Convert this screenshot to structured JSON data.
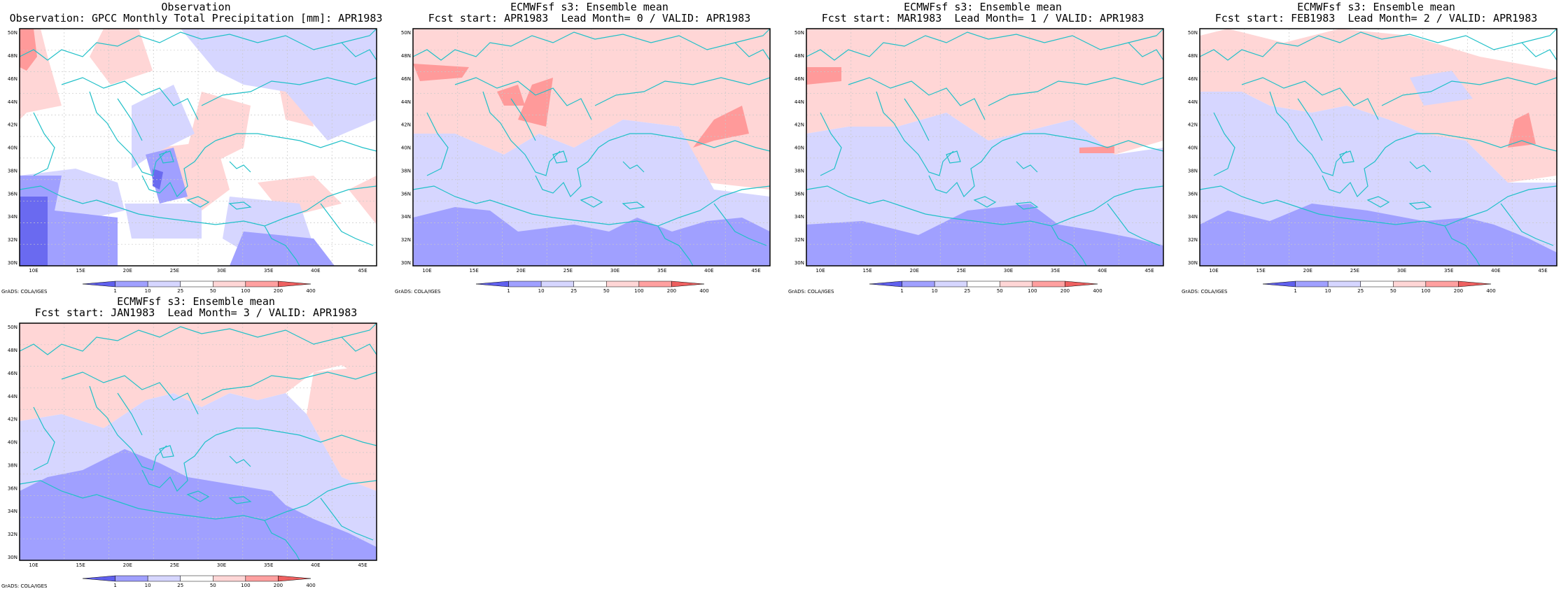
{
  "panels": [
    {
      "title_line1": "Observation",
      "title_line2": "Observation: GPCC Monthly Total Precipitation [mm]: APR1983",
      "credit": "GrADS: COLA/IGES",
      "shading": [
        {
          "level": "pink",
          "shape": "A"
        },
        {
          "level": "lightblue",
          "shape": "B"
        },
        {
          "level": "blue",
          "shape": "C"
        },
        {
          "level": "darkblue",
          "shape": "D"
        },
        {
          "level": "red",
          "shape": "E"
        }
      ]
    },
    {
      "title_line1": "ECMWFsf s3: Ensemble mean",
      "title_line2": "Fcst start: APR1983  Lead Month= 0 / VALID: APR1983",
      "credit": "GrADS: COLA/IGES",
      "shading": [
        {
          "level": "pink",
          "shape": "F"
        },
        {
          "level": "lightblue",
          "shape": "G"
        },
        {
          "level": "blue",
          "shape": "H"
        },
        {
          "level": "red",
          "shape": "I"
        }
      ]
    },
    {
      "title_line1": "ECMWFsf s3: Ensemble mean",
      "title_line2": "Fcst start: MAR1983  Lead Month= 1 / VALID: APR1983",
      "credit": "GrADS: COLA/IGES",
      "shading": [
        {
          "level": "pink",
          "shape": "J"
        },
        {
          "level": "lightblue",
          "shape": "K"
        },
        {
          "level": "blue",
          "shape": "L"
        },
        {
          "level": "red",
          "shape": "M"
        }
      ]
    },
    {
      "title_line1": "ECMWFsf s3: Ensemble mean",
      "title_line2": "Fcst start: FEB1983  Lead Month= 2 / VALID: APR1983",
      "credit": "GrADS: COLA/IGES",
      "shading": [
        {
          "level": "pink",
          "shape": "N"
        },
        {
          "level": "lightblue",
          "shape": "O"
        },
        {
          "level": "blue",
          "shape": "P"
        },
        {
          "level": "red",
          "shape": "Q"
        }
      ]
    },
    {
      "title_line1": "ECMWFsf s3: Ensemble mean",
      "title_line2": "Fcst start: JAN1983  Lead Month= 3 / VALID: APR1983",
      "credit": "GrADS: COLA/IGES",
      "shading": [
        {
          "level": "pink",
          "shape": "R"
        },
        {
          "level": "lightblue",
          "shape": "S"
        },
        {
          "level": "blue",
          "shape": "T"
        }
      ]
    }
  ],
  "axes": {
    "lat_labels": [
      "30N",
      "32N",
      "34N",
      "36N",
      "38N",
      "40N",
      "42N",
      "44N",
      "46N",
      "48N",
      "50N"
    ],
    "lon_labels": [
      "10E",
      "15E",
      "20E",
      "25E",
      "30E",
      "35E",
      "40E",
      "45E"
    ]
  },
  "colorbar": {
    "labels": [
      "1",
      "10",
      "25",
      "50",
      "100",
      "200",
      "400"
    ],
    "colors": [
      "#6060ee",
      "#a0a0ff",
      "#d6d6ff",
      "#ffffff",
      "#ffd6d6",
      "#ffa0a0",
      "#ee6060"
    ]
  },
  "colors": {
    "coastline": "#20c0c8",
    "grid": "#c8c8c8",
    "pink": "#ffd6d6",
    "lightblue": "#d6d6ff",
    "blue": "#a0a0ff",
    "darkblue": "#6a6af0",
    "red": "#ff9a9a"
  }
}
